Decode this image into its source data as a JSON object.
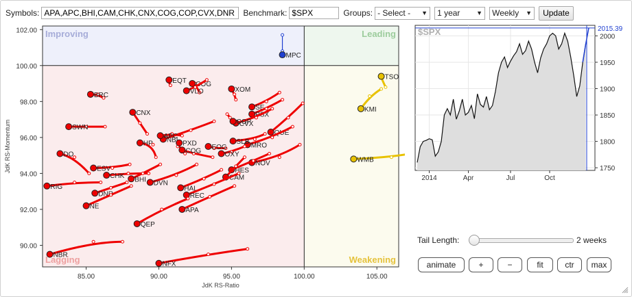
{
  "toolbar": {
    "symbols_label": "Symbols:",
    "symbols_value": "APA,APC,BHI,CAM,CHK,CNX,COG,COP,CVX,DNR",
    "benchmark_label": "Benchmark:",
    "benchmark_value": "$SPX",
    "groups_label": "Groups:",
    "groups_value": "- Select -",
    "period_value": "1 year",
    "interval_value": "Weekly",
    "update_label": "Update"
  },
  "rrg": {
    "xlabel": "JdK RS-Ratio",
    "ylabel": "JdK RS-Momentum",
    "xlim": [
      82,
      106.5
    ],
    "ylim": [
      88.8,
      102.2
    ],
    "xticks": [
      85,
      90,
      95,
      100,
      105
    ],
    "yticks": [
      90,
      92,
      94,
      96,
      98,
      100,
      102
    ],
    "quadrants": {
      "improving": "Improving",
      "leading": "Leading",
      "lagging": "Lagging",
      "weakening": "Weakening"
    },
    "colors": {
      "improving_bg": "#eef0fb",
      "leading_bg": "#eef7ee",
      "lagging_bg": "#fbeced",
      "weakening_bg": "#fcfbee",
      "improving_label": "#a6acd8",
      "leading_label": "#9ccc9c",
      "lagging_label": "#eda0a0",
      "weakening_label": "#e5c23c",
      "lagging_series": "#ee0000",
      "weakening_series": "#e8c200",
      "improving_series": "#1f3fd0"
    }
  },
  "chart_data": [
    {
      "type": "scatter",
      "title": "",
      "xlabel": "JdK RS-Ratio",
      "ylabel": "JdK RS-Momentum",
      "xlim": [
        82,
        106.5
      ],
      "ylim": [
        88.8,
        102.2
      ],
      "series": [
        {
          "name": "MPC",
          "quadrant": "improving",
          "tail": [
            [
              98.5,
              101.7
            ],
            [
              98.5,
              100.8
            ],
            [
              98.5,
              100.6
            ]
          ]
        },
        {
          "name": "TSO",
          "quadrant": "weakening",
          "tail": [
            [
              105.6,
              98.8
            ],
            [
              105.3,
              99.3
            ],
            [
              105.3,
              99.4
            ]
          ]
        },
        {
          "name": "KMI",
          "quadrant": "weakening",
          "tail": [
            [
              105.3,
              98.7
            ],
            [
              104.5,
              98.3
            ],
            [
              103.9,
              97.6
            ]
          ]
        },
        {
          "name": "WMB",
          "quadrant": "weakening",
          "tail": [
            [
              107.3,
              95.1
            ],
            [
              106.0,
              94.9
            ],
            [
              103.4,
              94.8
            ]
          ]
        },
        {
          "name": "EQT",
          "quadrant": "lagging",
          "tail": [
            [
              90.8,
              98.9
            ],
            [
              90.6,
              99.2
            ],
            [
              90.7,
              99.2
            ]
          ]
        },
        {
          "name": "COG",
          "quadrant": "lagging",
          "tail": [
            [
              92.8,
              98.5
            ],
            [
              92.5,
              99.0
            ],
            [
              92.3,
              99.0
            ]
          ]
        },
        {
          "name": "VLO",
          "quadrant": "lagging",
          "tail": [
            [
              93.3,
              99.2
            ],
            [
              92.5,
              98.8
            ],
            [
              91.9,
              98.6
            ]
          ]
        },
        {
          "name": "XOM",
          "quadrant": "lagging",
          "tail": [
            [
              95.3,
              98.1
            ],
            [
              95.2,
              98.4
            ],
            [
              95.0,
              98.7
            ]
          ]
        },
        {
          "name": "BRC",
          "quadrant": "lagging",
          "tail": [
            [
              86.2,
              98.2
            ],
            [
              85.8,
              98.4
            ],
            [
              85.3,
              98.4
            ]
          ]
        },
        {
          "name": "CNX",
          "quadrant": "lagging",
          "tail": [
            [
              89.2,
              96.2
            ],
            [
              88.7,
              96.8
            ],
            [
              88.2,
              97.4
            ]
          ]
        },
        {
          "name": "SE",
          "quadrant": "lagging",
          "tail": [
            [
              98.3,
              98.5
            ],
            [
              97.4,
              98.0
            ],
            [
              96.4,
              97.7
            ]
          ]
        },
        {
          "name": "PSX",
          "quadrant": "lagging",
          "tail": [
            [
              98.5,
              98.1
            ],
            [
              97.4,
              97.6
            ],
            [
              96.4,
              97.3
            ]
          ]
        },
        {
          "name": "CVX",
          "quadrant": "lagging",
          "tail": [
            [
              97.8,
              97.6
            ],
            [
              96.7,
              97.1
            ],
            [
              95.3,
              96.8
            ]
          ]
        },
        {
          "name": "QUE",
          "quadrant": "lagging",
          "tail": [
            [
              99.9,
              97.9
            ],
            [
              98.9,
              97.1
            ],
            [
              97.7,
              96.3
            ]
          ]
        },
        {
          "name": "COP",
          "quadrant": "lagging",
          "tail": [
            [
              94.7,
              97.3
            ],
            [
              94.9,
              97.1
            ],
            [
              95.1,
              96.9
            ]
          ]
        },
        {
          "name": "SWN",
          "quadrant": "lagging",
          "tail": [
            [
              86.3,
              96.6
            ],
            [
              85.0,
              96.6
            ],
            [
              83.8,
              96.6
            ]
          ]
        },
        {
          "name": "MRO",
          "quadrant": "lagging",
          "tail": [
            [
              99.2,
              96.6
            ],
            [
              97.8,
              96.0
            ],
            [
              96.1,
              95.6
            ]
          ]
        },
        {
          "name": "SLB",
          "quadrant": "lagging",
          "tail": [
            [
              97.3,
              96.2
            ],
            [
              96.6,
              95.9
            ],
            [
              95.1,
              95.8
            ]
          ]
        },
        {
          "name": "NBL",
          "quadrant": "lagging",
          "tail": [
            [
              93.8,
              96.9
            ],
            [
              92.2,
              96.4
            ],
            [
              90.3,
              95.9
            ]
          ]
        },
        {
          "name": "HP",
          "quadrant": "lagging",
          "tail": [
            [
              89.8,
              94.9
            ],
            [
              89.6,
              95.6
            ],
            [
              88.7,
              95.7
            ]
          ]
        },
        {
          "name": "APC",
          "quadrant": "lagging",
          "tail": [
            [
              91.6,
              96.1
            ],
            [
              90.9,
              96.2
            ],
            [
              90.1,
              96.1
            ]
          ]
        },
        {
          "name": "PXD",
          "quadrant": "lagging",
          "tail": [
            [
              91.8,
              95.1
            ],
            [
              91.3,
              95.5
            ],
            [
              91.4,
              95.7
            ]
          ]
        },
        {
          "name": "COG2",
          "quadrant": "lagging",
          "tail": [
            [
              93.7,
              94.9
            ],
            [
              92.4,
              95.1
            ],
            [
              91.6,
              95.3
            ]
          ]
        },
        {
          "name": "EOG",
          "quadrant": "lagging",
          "tail": [
            [
              94.6,
              95.4
            ],
            [
              93.8,
              95.4
            ],
            [
              93.4,
              95.5
            ]
          ]
        },
        {
          "name": "OXY",
          "quadrant": "lagging",
          "tail": [
            [
              95.9,
              95.5
            ],
            [
              95.0,
              95.2
            ],
            [
              94.3,
              95.1
            ]
          ]
        },
        {
          "name": "DO",
          "quadrant": "lagging",
          "tail": [
            [
              85.2,
              94.0
            ],
            [
              84.2,
              94.9
            ],
            [
              83.2,
              95.1
            ]
          ]
        },
        {
          "name": "ESV",
          "quadrant": "lagging",
          "tail": [
            [
              88.0,
              94.5
            ],
            [
              86.8,
              94.3
            ],
            [
              85.5,
              94.3
            ]
          ]
        },
        {
          "name": "CHK",
          "quadrant": "lagging",
          "tail": [
            [
              89.3,
              94.0
            ],
            [
              87.9,
              94.0
            ],
            [
              86.4,
              93.9
            ]
          ]
        },
        {
          "name": "BHI",
          "quadrant": "lagging",
          "tail": [
            [
              90.1,
              94.5
            ],
            [
              88.9,
              94.0
            ],
            [
              88.1,
              93.7
            ]
          ]
        },
        {
          "name": "NOV",
          "quadrant": "lagging",
          "tail": [
            [
              99.7,
              95.6
            ],
            [
              98.3,
              94.9
            ],
            [
              96.4,
              94.6
            ]
          ]
        },
        {
          "name": "HES",
          "quadrant": "lagging",
          "tail": [
            [
              97.6,
              95.1
            ],
            [
              96.5,
              94.7
            ],
            [
              95.0,
              94.2
            ]
          ]
        },
        {
          "name": "CAM",
          "quadrant": "lagging",
          "tail": [
            [
              95.9,
              94.9
            ],
            [
              95.3,
              94.4
            ],
            [
              94.6,
              93.8
            ]
          ]
        },
        {
          "name": "DVN",
          "quadrant": "lagging",
          "tail": [
            [
              92.6,
              94.5
            ],
            [
              91.2,
              93.9
            ],
            [
              89.4,
              93.5
            ]
          ]
        },
        {
          "name": "HAL",
          "quadrant": "lagging",
          "tail": [
            [
              94.3,
              94.2
            ],
            [
              93.1,
              93.7
            ],
            [
              91.5,
              93.2
            ]
          ]
        },
        {
          "name": "REC",
          "quadrant": "lagging",
          "tail": [
            [
              95.5,
              94.0
            ],
            [
              93.8,
              93.4
            ],
            [
              91.9,
              92.8
            ]
          ]
        },
        {
          "name": "RIG",
          "quadrant": "lagging",
          "tail": [
            [
              86.0,
              93.5
            ],
            [
              84.2,
              93.5
            ],
            [
              82.3,
              93.3
            ]
          ]
        },
        {
          "name": "DNR",
          "quadrant": "lagging",
          "tail": [
            [
              87.8,
              93.5
            ],
            [
              86.7,
              93.2
            ],
            [
              85.6,
              92.9
            ]
          ]
        },
        {
          "name": "NE",
          "quadrant": "lagging",
          "tail": [
            [
              88.1,
              93.3
            ],
            [
              86.7,
              92.8
            ],
            [
              85.0,
              92.2
            ]
          ]
        },
        {
          "name": "APA",
          "quadrant": "lagging",
          "tail": [
            [
              95.2,
              93.3
            ],
            [
              93.5,
              92.7
            ],
            [
              91.6,
              92.0
            ]
          ]
        },
        {
          "name": "QEP",
          "quadrant": "lagging",
          "tail": [
            [
              92.0,
              92.6
            ],
            [
              90.2,
              92.0
            ],
            [
              88.5,
              91.2
            ]
          ]
        },
        {
          "name": "NBR",
          "quadrant": "lagging",
          "tail": [
            [
              87.5,
              90.2
            ],
            [
              85.5,
              90.2
            ],
            [
              82.5,
              89.5
            ]
          ]
        },
        {
          "name": "NFX",
          "quadrant": "lagging",
          "tail": [
            [
              96.1,
              89.8
            ],
            [
              93.4,
              89.5
            ],
            [
              90.0,
              89.0
            ]
          ]
        }
      ]
    },
    {
      "type": "line",
      "title": "$SPX",
      "xlabel": "",
      "ylabel": "",
      "x_ticks": [
        "2014",
        "Apr",
        "Jul",
        "Oct"
      ],
      "y_ticks": [
        1750,
        1800,
        1850,
        1900,
        1950,
        2000
      ],
      "ylim": [
        1745,
        2020
      ],
      "last_value_label": "2015.39",
      "series": [
        {
          "name": "$SPX",
          "values": [
            1760,
            1790,
            1800,
            1802,
            1805,
            1803,
            1772,
            1780,
            1800,
            1850,
            1862,
            1850,
            1880,
            1842,
            1858,
            1880,
            1850,
            1855,
            1868,
            1843,
            1890,
            1870,
            1865,
            1885,
            1860,
            1868,
            1895,
            1930,
            1950,
            1960,
            1940,
            1952,
            1962,
            1970,
            1985,
            1965,
            1972,
            1990,
            1975,
            1950,
            1930,
            1958,
            1975,
            1985,
            2000,
            2005,
            2000,
            1975,
            1985,
            2005,
            1990,
            1960,
            1925,
            1885,
            1905,
            1950,
            1985,
            2015
          ]
        }
      ]
    }
  ],
  "right_panel": {
    "tail_length_label": "Tail Length:",
    "tail_length_value": "2 weeks",
    "tail_length_fraction": 0.0,
    "buttons": {
      "animate": "animate",
      "plus": "+",
      "minus": "−",
      "fit": "fit",
      "ctr": "ctr",
      "max": "max"
    }
  }
}
